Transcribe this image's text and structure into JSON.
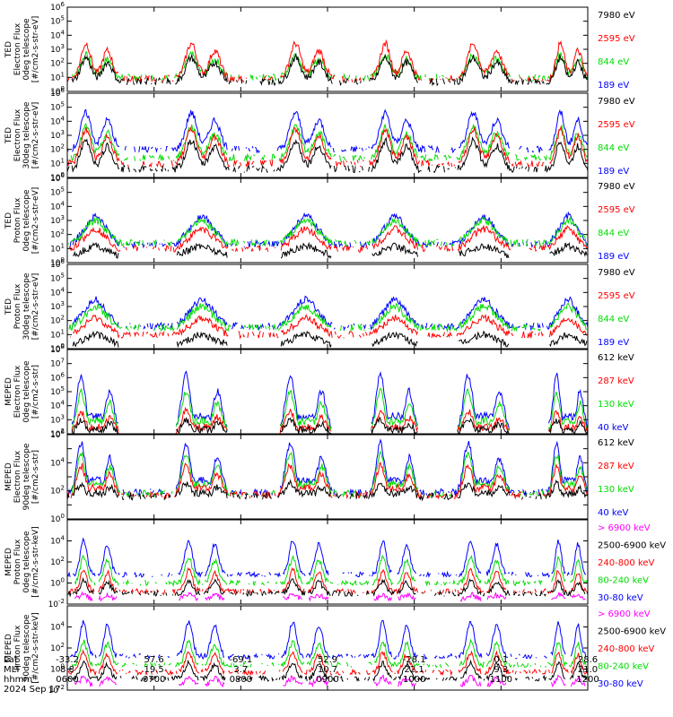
{
  "date_label": "2024 Sep 17",
  "axis_row_labels": [
    "Lat",
    "MLT",
    "hhmm"
  ],
  "colors": {
    "blue": "#0000ff",
    "red": "#ff0000",
    "green": "#00dd00",
    "black": "#000000",
    "magenta": "#ff00ff"
  },
  "chart_data": [
    {
      "type": "line",
      "ylabel_lines": [
        "TED",
        "Electron Flux",
        "0deg telescope",
        "[#/cm2-s-str-eV]"
      ],
      "yscale": "log",
      "ylim_exp": [
        0,
        6
      ],
      "tick_labels": [
        "10^0",
        "10^1",
        "10^2",
        "10^3",
        "10^4",
        "10^5",
        "10^6"
      ],
      "legend": [
        {
          "name": "7980 eV",
          "color": "#000000"
        },
        {
          "name": "2595 eV",
          "color": "#ff0000"
        },
        {
          "name": "844 eV",
          "color": "#00dd00"
        },
        {
          "name": "189 eV",
          "color": "#0000ff"
        }
      ],
      "profile": "ted",
      "series": [
        {
          "color": "#00dd00",
          "base_exp": 1.0,
          "peak_exp": 2.6
        },
        {
          "color": "#ff0000",
          "base_exp": 0.9,
          "peak_exp": 3.4
        },
        {
          "color": "#000000",
          "base_exp": 0.7,
          "peak_exp": 2.4
        }
      ]
    },
    {
      "type": "line",
      "ylabel_lines": [
        "TED",
        "Electron Flux",
        "30deg telescope",
        "[#/cm2-s-str-eV]"
      ],
      "yscale": "log",
      "ylim_exp": [
        0,
        6
      ],
      "tick_labels": [
        "10^0",
        "10^1",
        "10^2",
        "10^3",
        "10^4",
        "10^5",
        "10^6"
      ],
      "legend": [
        {
          "name": "7980 eV",
          "color": "#000000"
        },
        {
          "name": "2595 eV",
          "color": "#ff0000"
        },
        {
          "name": "844 eV",
          "color": "#00dd00"
        },
        {
          "name": "189 eV",
          "color": "#0000ff"
        }
      ],
      "profile": "ted",
      "series": [
        {
          "color": "#0000ff",
          "base_exp": 2.0,
          "peak_exp": 4.6
        },
        {
          "color": "#00dd00",
          "base_exp": 1.4,
          "peak_exp": 3.6
        },
        {
          "color": "#ff0000",
          "base_exp": 1.0,
          "peak_exp": 3.4
        },
        {
          "color": "#000000",
          "base_exp": 0.6,
          "peak_exp": 2.6
        }
      ]
    },
    {
      "type": "line",
      "ylabel_lines": [
        "TED",
        "Proton Flux",
        "0deg telescope",
        "[#/cm2-s-str-eV]"
      ],
      "yscale": "log",
      "ylim_exp": [
        0,
        6
      ],
      "tick_labels": [
        "10^0",
        "10^1",
        "10^2",
        "10^3",
        "10^4",
        "10^5",
        "10^6"
      ],
      "legend": [
        {
          "name": "7980 eV",
          "color": "#000000"
        },
        {
          "name": "2595 eV",
          "color": "#ff0000"
        },
        {
          "name": "844 eV",
          "color": "#00dd00"
        },
        {
          "name": "189 eV",
          "color": "#0000ff"
        }
      ],
      "profile": "tedp",
      "series": [
        {
          "color": "#0000ff",
          "base_exp": 1.3,
          "peak_exp": 3.3
        },
        {
          "color": "#ff0000",
          "base_exp": 1.0,
          "peak_exp": 2.4
        },
        {
          "color": "#00dd00",
          "base_exp": 1.4,
          "peak_exp": 3.0
        },
        {
          "color": "#000000",
          "base_exp": 0.5,
          "peak_exp": 1.2
        }
      ]
    },
    {
      "type": "line",
      "ylabel_lines": [
        "TED",
        "Proton Flux",
        "30deg telescope",
        "[#/cm2-s-str-eV]"
      ],
      "yscale": "log",
      "ylim_exp": [
        0,
        6
      ],
      "tick_labels": [
        "10^0",
        "10^1",
        "10^2",
        "10^3",
        "10^4",
        "10^5",
        "10^6"
      ],
      "legend": [
        {
          "name": "7980 eV",
          "color": "#000000"
        },
        {
          "name": "2595 eV",
          "color": "#ff0000"
        },
        {
          "name": "844 eV",
          "color": "#00dd00"
        },
        {
          "name": "189 eV",
          "color": "#0000ff"
        }
      ],
      "profile": "tedp",
      "series": [
        {
          "color": "#0000ff",
          "base_exp": 1.6,
          "peak_exp": 3.5
        },
        {
          "color": "#00dd00",
          "base_exp": 1.5,
          "peak_exp": 3.0
        },
        {
          "color": "#ff0000",
          "base_exp": 1.0,
          "peak_exp": 2.2
        },
        {
          "color": "#000000",
          "base_exp": 0.3,
          "peak_exp": 1.0
        }
      ]
    },
    {
      "type": "line",
      "ylabel_lines": [
        "MEPED",
        "Electron Flux",
        "0deg telescope",
        "[#/cm2-s-str]"
      ],
      "yscale": "log",
      "ylim_exp": [
        2,
        8
      ],
      "tick_labels": [
        "10^2",
        "10^3",
        "10^4",
        "10^5",
        "10^6",
        "10^7",
        "10^8"
      ],
      "legend": [
        {
          "name": "612 keV",
          "color": "#000000"
        },
        {
          "name": "287 keV",
          "color": "#ff0000"
        },
        {
          "name": "130 keV",
          "color": "#00dd00"
        },
        {
          "name": "40 keV",
          "color": "#0000ff"
        }
      ],
      "profile": "meped",
      "series": [
        {
          "color": "#0000ff",
          "base_exp": 2.3,
          "peak_exp": 6.2
        },
        {
          "color": "#00dd00",
          "base_exp": 2.2,
          "peak_exp": 5.0
        },
        {
          "color": "#ff0000",
          "base_exp": 2.1,
          "peak_exp": 3.6
        },
        {
          "color": "#000000",
          "base_exp": 2.05,
          "peak_exp": 3.0
        }
      ]
    },
    {
      "type": "line",
      "ylabel_lines": [
        "MEPED",
        "Electron Flux",
        "90deg telescope",
        "[#/cm2-s-str]"
      ],
      "yscale": "log",
      "ylim_exp": [
        0,
        6
      ],
      "tick_labels": [
        "10^0",
        "",
        "10^2",
        "",
        "10^4",
        "",
        "10^6"
      ],
      "legend": [
        {
          "name": "612 keV",
          "color": "#000000"
        },
        {
          "name": "287 keV",
          "color": "#ff0000"
        },
        {
          "name": "130 keV",
          "color": "#00dd00"
        },
        {
          "name": "40 keV",
          "color": "#0000ff"
        }
      ],
      "profile": "meped",
      "series": [
        {
          "color": "#0000ff",
          "base_exp": 1.9,
          "peak_exp": 5.4
        },
        {
          "color": "#00dd00",
          "base_exp": 1.8,
          "peak_exp": 4.6
        },
        {
          "color": "#ff0000",
          "base_exp": 1.7,
          "peak_exp": 3.8
        },
        {
          "color": "#000000",
          "base_exp": 1.6,
          "peak_exp": 2.5
        }
      ]
    },
    {
      "type": "line",
      "ylabel_lines": [
        "MEPED",
        "Proton Flux",
        "0deg telescope",
        "[#/cm2-s-str-keV]"
      ],
      "yscale": "log",
      "ylim_exp": [
        -2,
        6
      ],
      "tick_labels": [
        "10^-2",
        "10^0",
        "10^2",
        "10^4",
        ""
      ],
      "legend": [
        {
          "name": "> 6900 keV",
          "color": "#ff00ff"
        },
        {
          "name": "2500-6900 keV",
          "color": "#000000"
        },
        {
          "name": "240-800 keV",
          "color": "#ff0000"
        },
        {
          "name": "80-240 keV",
          "color": "#00dd00"
        },
        {
          "name": "30-80 keV",
          "color": "#0000ff"
        }
      ],
      "profile": "mepedp",
      "series": [
        {
          "color": "#0000ff",
          "base_exp": 0.8,
          "peak_exp": 4.0
        },
        {
          "color": "#00dd00",
          "base_exp": 0.0,
          "peak_exp": 2.4
        },
        {
          "color": "#ff0000",
          "base_exp": -0.8,
          "peak_exp": 1.2
        },
        {
          "color": "#000000",
          "base_exp": -1.0,
          "peak_exp": 0.2
        },
        {
          "color": "#ff00ff",
          "base_exp": -1.5,
          "peak_exp": -1.1
        }
      ]
    },
    {
      "type": "line",
      "ylabel_lines": [
        "MEPED",
        "Proton Flux",
        "90deg telescope",
        "[#/cm2-s-str-keV]"
      ],
      "yscale": "log",
      "ylim_exp": [
        -2,
        6
      ],
      "tick_labels": [
        "10^-2",
        "10^0",
        "10^2",
        "10^4",
        ""
      ],
      "legend": [
        {
          "name": "> 6900 keV",
          "color": "#ff00ff"
        },
        {
          "name": "2500-6900 keV",
          "color": "#000000"
        },
        {
          "name": "240-800 keV",
          "color": "#ff0000"
        },
        {
          "name": "80-240 keV",
          "color": "#00dd00"
        },
        {
          "name": "30-80 keV",
          "color": "#0000ff"
        }
      ],
      "profile": "mepedp",
      "series": [
        {
          "color": "#0000ff",
          "base_exp": 1.2,
          "peak_exp": 4.5
        },
        {
          "color": "#00dd00",
          "base_exp": 0.4,
          "peak_exp": 2.6
        },
        {
          "color": "#ff0000",
          "base_exp": -0.3,
          "peak_exp": 1.6
        },
        {
          "color": "#000000",
          "base_exp": -0.9,
          "peak_exp": 0.6
        },
        {
          "color": "#ff00ff",
          "base_exp": -1.5,
          "peak_exp": -0.8
        }
      ]
    }
  ],
  "x_axis": {
    "ticks": [
      {
        "lat": "-33.2",
        "mlt": "8.8",
        "hhmm": "0600"
      },
      {
        "lat": "57.6",
        "mlt": "19.5",
        "hhmm": "0700"
      },
      {
        "lat": "-69.1",
        "mlt": "3.7",
        "hhmm": "0800"
      },
      {
        "lat": "52.9",
        "mlt": "10.7",
        "hhmm": "0900"
      },
      {
        "lat": "-28.1",
        "mlt": "22.1",
        "hhmm": "1000"
      },
      {
        "lat": "0.1",
        "mlt": "9.3",
        "hhmm": "1100"
      },
      {
        "lat": "28.6",
        "mlt": "21.0",
        "hhmm": "1200"
      }
    ]
  },
  "passes_hours": [
    [
      0.05,
      0.6
    ],
    [
      1.25,
      1.85
    ],
    [
      2.45,
      3.05
    ],
    [
      3.5,
      4.05
    ],
    [
      4.5,
      5.1
    ],
    [
      5.55,
      6.0
    ]
  ]
}
